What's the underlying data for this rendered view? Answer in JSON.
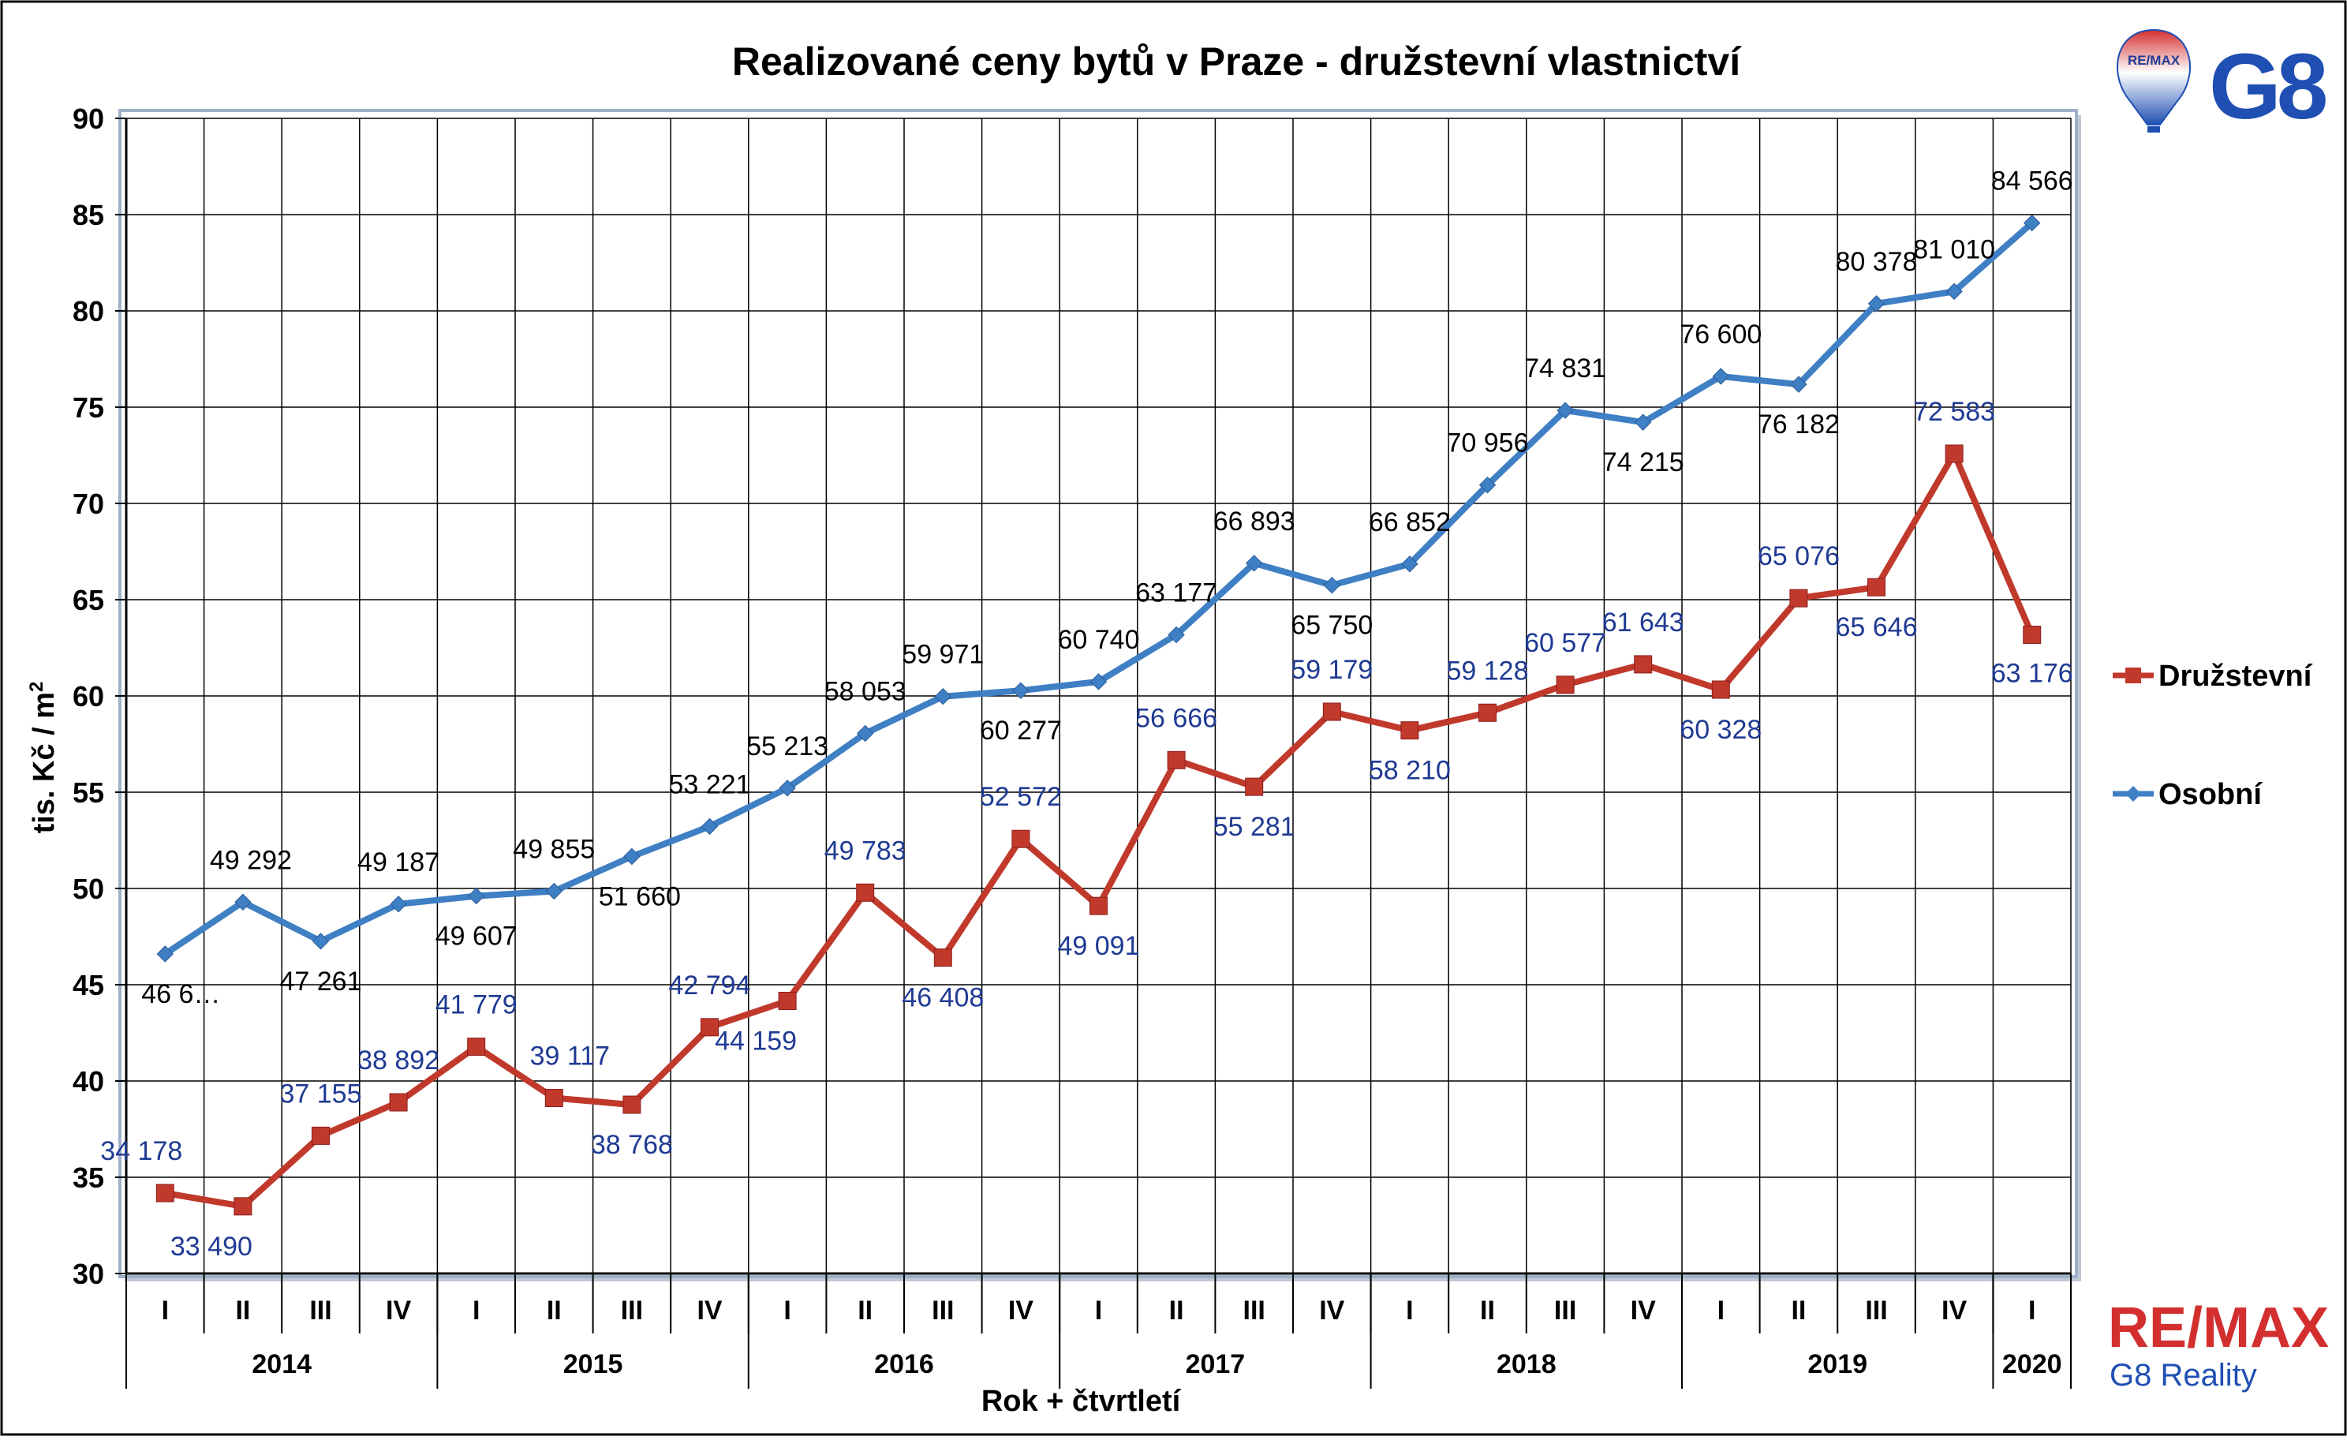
{
  "chart_data": {
    "type": "line",
    "title": "Realizované ceny bytů v Praze - družstevní vlastnictví",
    "ylabel": "tis. Kč / m",
    "ylabel_superscript": "2",
    "xlabel": "Rok + čtvrtletí",
    "ylim": [
      30,
      90
    ],
    "yticks": [
      "30",
      "35",
      "40",
      "45",
      "50",
      "55",
      "60",
      "65",
      "70",
      "75",
      "80",
      "85",
      "90"
    ],
    "grid": true,
    "legend_position": "right",
    "categories": [
      "I",
      "II",
      "III",
      "IV",
      "I",
      "II",
      "III",
      "IV",
      "I",
      "II",
      "III",
      "IV",
      "I",
      "II",
      "III",
      "IV",
      "I",
      "II",
      "III",
      "IV",
      "I",
      "II",
      "III",
      "IV",
      "I"
    ],
    "years": [
      {
        "label": "2014",
        "quarters": 4
      },
      {
        "label": "2015",
        "quarters": 4
      },
      {
        "label": "2016",
        "quarters": 4
      },
      {
        "label": "2017",
        "quarters": 4
      },
      {
        "label": "2018",
        "quarters": 4
      },
      {
        "label": "2019",
        "quarters": 4
      },
      {
        "label": "2020",
        "quarters": 1
      }
    ],
    "series": [
      {
        "name": "Družstevní",
        "color": "#c0392b",
        "marker": "square",
        "label_color": "#1f3a93",
        "values": [
          34.178,
          33.49,
          37.155,
          38.892,
          41.779,
          39.117,
          38.768,
          42.794,
          44.159,
          49.783,
          46.408,
          52.572,
          49.091,
          56.666,
          55.281,
          59.179,
          58.21,
          59.128,
          60.577,
          61.643,
          60.328,
          65.076,
          65.646,
          72.583,
          63.176
        ],
        "labels": [
          "34 178",
          "33 490",
          "37 155",
          "38 892",
          "41 779",
          "39 117",
          "38 768",
          "42 794",
          "44 159",
          "49 783",
          "46 408",
          "52 572",
          "49 091",
          "56 666",
          "55 281",
          "59 179",
          "58 210",
          "59 128",
          "60 577",
          "61 643",
          "60 328",
          "65 076",
          "65 646",
          "72 583",
          "63 176"
        ]
      },
      {
        "name": "Osobní",
        "color": "#3f7fc4",
        "marker": "diamond",
        "label_color": "#000000",
        "values": [
          46.6,
          49.292,
          47.261,
          49.187,
          49.607,
          49.855,
          51.66,
          53.221,
          55.213,
          58.053,
          59.971,
          60.277,
          60.74,
          63.177,
          66.893,
          65.75,
          66.852,
          70.956,
          74.831,
          74.215,
          76.6,
          76.182,
          80.378,
          81.01,
          84.566
        ],
        "labels": [
          "46 6…",
          "49 292",
          "47 261",
          "49 187",
          "49 607",
          "49 855",
          "51 660",
          "53 221",
          "55 213",
          "58 053",
          "59 971",
          "60 277",
          "60 740",
          "63 177",
          "66 893",
          "65 750",
          "66 852",
          "70 956",
          "74 831",
          "74 215",
          "76 600",
          "76 182",
          "80 378",
          "81 010",
          "84 566"
        ]
      }
    ]
  },
  "logos": {
    "top_badge": "RE/MAX",
    "top_text": "G8",
    "bottom_brand": "RE/MAX",
    "bottom_sub": "G8 Reality"
  }
}
